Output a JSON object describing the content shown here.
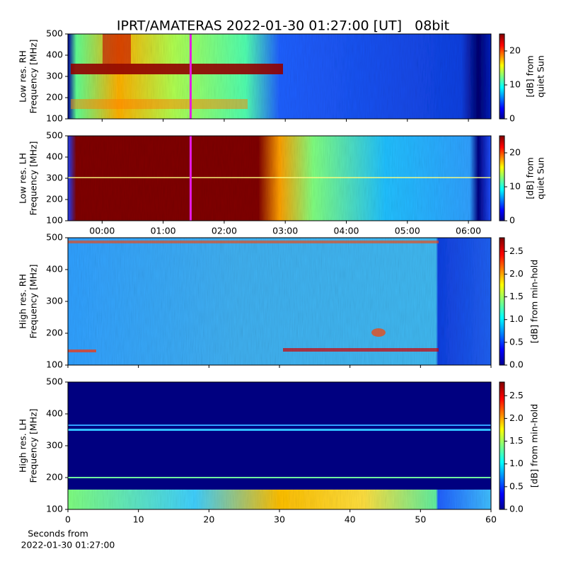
{
  "title": "IPRT/AMATERAS 2022-01-30 01:27:00 [UT]   08bit",
  "chart_data": [
    {
      "type": "heatmap",
      "ylabel": [
        "Low res. RH",
        "Frequency [MHz]"
      ],
      "xlim": [
        -0.56,
        6.37
      ],
      "ylim": [
        100,
        500
      ],
      "yticks": [
        100,
        200,
        300,
        400,
        500
      ],
      "marker_x": 1.45,
      "marker_color": "#e619e6",
      "colorbar": {
        "label": [
          "[dB] from",
          "quiet Sun"
        ],
        "lim": [
          0,
          25
        ],
        "ticks": [
          0,
          10,
          20
        ]
      }
    },
    {
      "type": "heatmap",
      "ylabel": [
        "Low res. LH",
        "Frequency [MHz]"
      ],
      "xlim": [
        -0.56,
        6.37
      ],
      "ylim": [
        100,
        500
      ],
      "yticks": [
        100,
        200,
        300,
        400,
        500
      ],
      "xticks": [
        {
          "value": 0,
          "label": "00:00"
        },
        {
          "value": 1,
          "label": "01:00"
        },
        {
          "value": 2,
          "label": "02:00"
        },
        {
          "value": 3,
          "label": "03:00"
        },
        {
          "value": 4,
          "label": "04:00"
        },
        {
          "value": 5,
          "label": "05:00"
        },
        {
          "value": 6,
          "label": "06:00"
        }
      ],
      "marker_x": 1.45,
      "marker_color": "#e619e6",
      "colorbar": {
        "label": [
          "[dB] from",
          "quiet Sun"
        ],
        "lim": [
          0,
          25
        ],
        "ticks": [
          0,
          10,
          20
        ]
      }
    },
    {
      "type": "heatmap",
      "ylabel": [
        "High res. RH",
        "Frequency [MHz]"
      ],
      "xlim": [
        0,
        60
      ],
      "ylim": [
        100,
        500
      ],
      "yticks": [
        100,
        200,
        300,
        400,
        500
      ],
      "colorbar": {
        "label": [
          "[dB] from min-hold"
        ],
        "lim": [
          0,
          2.8
        ],
        "ticks": [
          {
            "value": 0,
            "label": "0.0"
          },
          {
            "value": 0.5,
            "label": "0.5"
          },
          {
            "value": 1,
            "label": "1.0"
          },
          {
            "value": 1.5,
            "label": "1.5"
          },
          {
            "value": 2,
            "label": "2.0"
          },
          {
            "value": 2.5,
            "label": "2.5"
          }
        ]
      }
    },
    {
      "type": "heatmap",
      "ylabel": [
        "High res. LH",
        "Frequency [MHz]"
      ],
      "xlabel": [
        "Seconds from",
        "2022-01-30 01:27:00"
      ],
      "xlim": [
        0,
        60
      ],
      "ylim": [
        100,
        500
      ],
      "yticks": [
        100,
        200,
        300,
        400,
        500
      ],
      "xticks": [
        0,
        10,
        20,
        30,
        40,
        50,
        60
      ],
      "colorbar": {
        "label": [
          "[dB] from min-hold"
        ],
        "lim": [
          0,
          2.8
        ],
        "ticks": [
          {
            "value": 0,
            "label": "0.0"
          },
          {
            "value": 0.5,
            "label": "0.5"
          },
          {
            "value": 1,
            "label": "1.0"
          },
          {
            "value": 1.5,
            "label": "1.5"
          },
          {
            "value": 2,
            "label": "2.0"
          },
          {
            "value": 2.5,
            "label": "2.5"
          }
        ]
      }
    }
  ]
}
